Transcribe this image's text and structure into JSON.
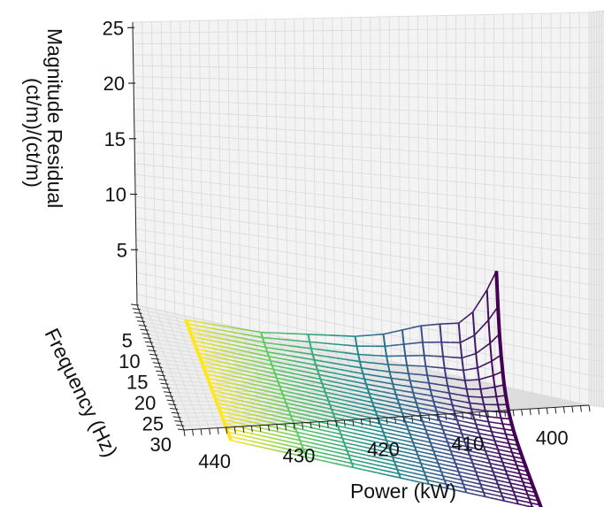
{
  "chart_data": {
    "type": "surface3d-wireframe",
    "title": "",
    "xlabel": "Power (kW)",
    "ylabel": "Frequency (Hz)",
    "zlabel_lines": [
      "Magnitude Residual",
      "(ct/m)/(ct/m)"
    ],
    "x_ticks": [
      "440",
      "430",
      "420",
      "410",
      "400"
    ],
    "y_ticks": [
      "5",
      "10",
      "15",
      "20",
      "25",
      "30"
    ],
    "z_ticks": [
      "25",
      "20",
      "15",
      "10",
      "5"
    ],
    "xlim": [
      395,
      443
    ],
    "ylim": [
      0,
      30
    ],
    "zlim": [
      0,
      25
    ],
    "grid": true,
    "colormap": "viridis",
    "colors": {
      "low_power_end": "#fde725",
      "mid": "#21918c",
      "high_power_end": "#440154",
      "grid": "#dcdcdc",
      "pane": "#f2f2f2"
    },
    "data_extent": {
      "power": [
        405,
        438
      ],
      "frequency": [
        1,
        30
      ]
    },
    "peak_profile_at_1Hz": {
      "power": [
        438,
        430,
        425,
        420,
        417,
        415,
        413,
        411,
        409,
        407.5,
        406,
        405
      ],
      "residual": [
        0.0,
        0.5,
        1.5,
        2.5,
        3.5,
        4.5,
        5.5,
        6.2,
        6.8,
        8.5,
        11.5,
        14.0
      ]
    }
  }
}
